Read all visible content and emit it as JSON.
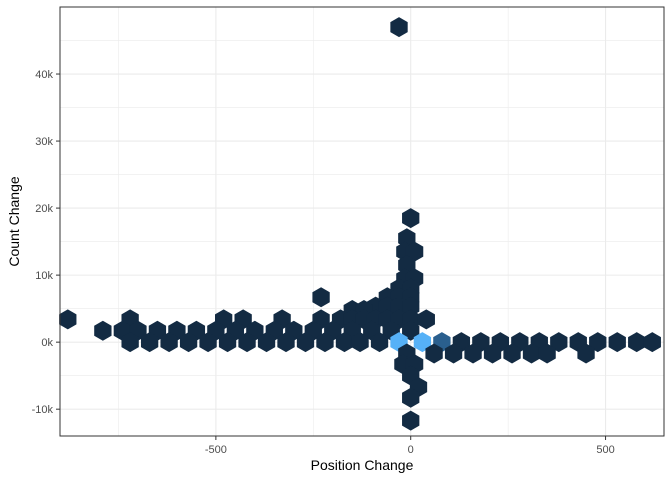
{
  "chart_data": {
    "type": "hexbin",
    "xlabel": "Position Change",
    "ylabel": "Count Change",
    "xlim": [
      -900,
      650
    ],
    "ylim": [
      -14000,
      50000
    ],
    "x_ticks": [
      {
        "value": -500,
        "label": "-500"
      },
      {
        "value": 0,
        "label": "0"
      },
      {
        "value": 500,
        "label": "500"
      }
    ],
    "y_ticks": [
      {
        "value": -10000,
        "label": "-10k"
      },
      {
        "value": 0,
        "label": "0k"
      },
      {
        "value": 10000,
        "label": "10k"
      },
      {
        "value": 20000,
        "label": "20k"
      },
      {
        "value": 30000,
        "label": "30k"
      },
      {
        "value": 40000,
        "label": "40k"
      }
    ],
    "grid": true,
    "legend": "none",
    "colors": {
      "low": "#132b43",
      "mid": "#2a5f8e",
      "high": "#56b1f7",
      "grid": "#ebebeb",
      "panel_border": "#333333"
    },
    "points": [
      {
        "x": -30,
        "y": 47000,
        "level": 0
      },
      {
        "x": 0,
        "y": 18500,
        "level": 0
      },
      {
        "x": -10,
        "y": 15500,
        "level": 0
      },
      {
        "x": -15,
        "y": 13500,
        "level": 0
      },
      {
        "x": 10,
        "y": 13500,
        "level": 0
      },
      {
        "x": -10,
        "y": 11500,
        "level": 0
      },
      {
        "x": -15,
        "y": 9500,
        "level": 0
      },
      {
        "x": 10,
        "y": 9500,
        "level": 0
      },
      {
        "x": -30,
        "y": 8000,
        "level": 0
      },
      {
        "x": 0,
        "y": 8000,
        "level": 0
      },
      {
        "x": -230,
        "y": 6700,
        "level": 0
      },
      {
        "x": -60,
        "y": 6700,
        "level": 0
      },
      {
        "x": -30,
        "y": 6700,
        "level": 0
      },
      {
        "x": 0,
        "y": 6700,
        "level": 0
      },
      {
        "x": -90,
        "y": 5300,
        "level": 0
      },
      {
        "x": -60,
        "y": 5300,
        "level": 0
      },
      {
        "x": -30,
        "y": 5300,
        "level": 0
      },
      {
        "x": 0,
        "y": 5300,
        "level": 0
      },
      {
        "x": -150,
        "y": 4800,
        "level": 0
      },
      {
        "x": -120,
        "y": 4800,
        "level": 0
      },
      {
        "x": -880,
        "y": 3400,
        "level": 0
      },
      {
        "x": -720,
        "y": 3400,
        "level": 0
      },
      {
        "x": -480,
        "y": 3400,
        "level": 0
      },
      {
        "x": -430,
        "y": 3400,
        "level": 0
      },
      {
        "x": -330,
        "y": 3400,
        "level": 0
      },
      {
        "x": -230,
        "y": 3400,
        "level": 0
      },
      {
        "x": -180,
        "y": 3400,
        "level": 0
      },
      {
        "x": -150,
        "y": 3400,
        "level": 0
      },
      {
        "x": -120,
        "y": 3400,
        "level": 0
      },
      {
        "x": -90,
        "y": 3400,
        "level": 0
      },
      {
        "x": -60,
        "y": 3400,
        "level": 0
      },
      {
        "x": -30,
        "y": 3400,
        "level": 0
      },
      {
        "x": 0,
        "y": 3400,
        "level": 0
      },
      {
        "x": 40,
        "y": 3400,
        "level": 0
      },
      {
        "x": -790,
        "y": 1700,
        "level": 0
      },
      {
        "x": -740,
        "y": 1700,
        "level": 0
      },
      {
        "x": -700,
        "y": 1700,
        "level": 0
      },
      {
        "x": -650,
        "y": 1700,
        "level": 0
      },
      {
        "x": -600,
        "y": 1700,
        "level": 0
      },
      {
        "x": -550,
        "y": 1700,
        "level": 0
      },
      {
        "x": -500,
        "y": 1700,
        "level": 0
      },
      {
        "x": -450,
        "y": 1700,
        "level": 0
      },
      {
        "x": -400,
        "y": 1700,
        "level": 0
      },
      {
        "x": -350,
        "y": 1700,
        "level": 0
      },
      {
        "x": -300,
        "y": 1700,
        "level": 0
      },
      {
        "x": -250,
        "y": 1700,
        "level": 0
      },
      {
        "x": -200,
        "y": 1700,
        "level": 0
      },
      {
        "x": -150,
        "y": 1700,
        "level": 0
      },
      {
        "x": -100,
        "y": 1700,
        "level": 0
      },
      {
        "x": -50,
        "y": 1700,
        "level": 0
      },
      {
        "x": 0,
        "y": 1700,
        "level": 0
      },
      {
        "x": -720,
        "y": 0,
        "level": 0
      },
      {
        "x": -670,
        "y": 0,
        "level": 0
      },
      {
        "x": -620,
        "y": 0,
        "level": 0
      },
      {
        "x": -570,
        "y": 0,
        "level": 0
      },
      {
        "x": -520,
        "y": 0,
        "level": 0
      },
      {
        "x": -470,
        "y": 0,
        "level": 0
      },
      {
        "x": -420,
        "y": 0,
        "level": 0
      },
      {
        "x": -370,
        "y": 0,
        "level": 0
      },
      {
        "x": -320,
        "y": 0,
        "level": 0
      },
      {
        "x": -270,
        "y": 0,
        "level": 0
      },
      {
        "x": -220,
        "y": 0,
        "level": 0
      },
      {
        "x": -170,
        "y": 0,
        "level": 0
      },
      {
        "x": -130,
        "y": 0,
        "level": 0
      },
      {
        "x": -80,
        "y": 0,
        "level": 0
      },
      {
        "x": -30,
        "y": 0,
        "level": 2
      },
      {
        "x": 30,
        "y": 0,
        "level": 2
      },
      {
        "x": 80,
        "y": 0,
        "level": 1
      },
      {
        "x": 130,
        "y": 0,
        "level": 0
      },
      {
        "x": 180,
        "y": 0,
        "level": 0
      },
      {
        "x": 230,
        "y": 0,
        "level": 0
      },
      {
        "x": 280,
        "y": 0,
        "level": 0
      },
      {
        "x": 330,
        "y": 0,
        "level": 0
      },
      {
        "x": 380,
        "y": 0,
        "level": 0
      },
      {
        "x": 430,
        "y": 0,
        "level": 0
      },
      {
        "x": 480,
        "y": 0,
        "level": 0
      },
      {
        "x": 530,
        "y": 0,
        "level": 0
      },
      {
        "x": 580,
        "y": 0,
        "level": 0
      },
      {
        "x": 620,
        "y": 0,
        "level": 0
      },
      {
        "x": -10,
        "y": -1700,
        "level": 0
      },
      {
        "x": 60,
        "y": -1700,
        "level": 0
      },
      {
        "x": 110,
        "y": -1700,
        "level": 0
      },
      {
        "x": 160,
        "y": -1700,
        "level": 0
      },
      {
        "x": 210,
        "y": -1700,
        "level": 0
      },
      {
        "x": 260,
        "y": -1700,
        "level": 0
      },
      {
        "x": 310,
        "y": -1700,
        "level": 0
      },
      {
        "x": 350,
        "y": -1700,
        "level": 0
      },
      {
        "x": 450,
        "y": -1700,
        "level": 0
      },
      {
        "x": -20,
        "y": -3300,
        "level": 0
      },
      {
        "x": 10,
        "y": -3300,
        "level": 0
      },
      {
        "x": 0,
        "y": -5000,
        "level": 0
      },
      {
        "x": 20,
        "y": -6700,
        "level": 0
      },
      {
        "x": 0,
        "y": -8300,
        "level": 0
      },
      {
        "x": 0,
        "y": -11700,
        "level": 0
      }
    ]
  }
}
